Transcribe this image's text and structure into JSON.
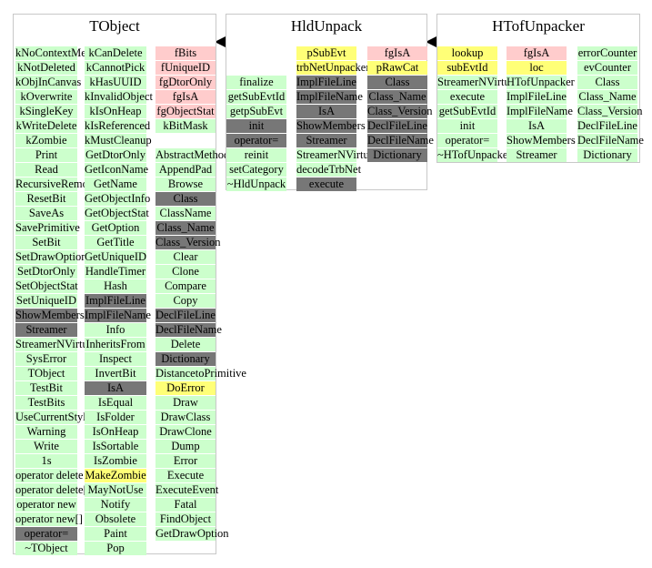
{
  "classes": [
    {
      "title": "TObject",
      "columns": [
        [
          {
            "text": "kNoContextMenu",
            "color": "green"
          },
          {
            "text": "kNotDeleted",
            "color": "green"
          },
          {
            "text": "kObjInCanvas",
            "color": "green"
          },
          {
            "text": "kOverwrite",
            "color": "green"
          },
          {
            "text": "kSingleKey",
            "color": "green"
          },
          {
            "text": "kWriteDelete",
            "color": "green"
          },
          {
            "text": "kZombie",
            "color": "green"
          },
          {
            "text": "Print",
            "color": "green"
          },
          {
            "text": "Read",
            "color": "green"
          },
          {
            "text": "RecursiveRemove",
            "color": "green"
          },
          {
            "text": "ResetBit",
            "color": "green"
          },
          {
            "text": "SaveAs",
            "color": "green"
          },
          {
            "text": "SavePrimitive",
            "color": "green"
          },
          {
            "text": "SetBit",
            "color": "green"
          },
          {
            "text": "SetDrawOption",
            "color": "green"
          },
          {
            "text": "SetDtorOnly",
            "color": "green"
          },
          {
            "text": "SetObjectStat",
            "color": "green"
          },
          {
            "text": "SetUniqueID",
            "color": "green"
          },
          {
            "text": "ShowMembers",
            "color": "gray"
          },
          {
            "text": "Streamer",
            "color": "gray"
          },
          {
            "text": "StreamerNVirtual",
            "color": "green"
          },
          {
            "text": "SysError",
            "color": "green"
          },
          {
            "text": "TObject",
            "color": "green"
          },
          {
            "text": "TestBit",
            "color": "green"
          },
          {
            "text": "TestBits",
            "color": "green"
          },
          {
            "text": "UseCurrentStyle",
            "color": "green"
          },
          {
            "text": "Warning",
            "color": "green"
          },
          {
            "text": "Write",
            "color": "green"
          },
          {
            "text": "1s",
            "color": "green"
          },
          {
            "text": "operator delete",
            "color": "green"
          },
          {
            "text": "operator delete[]",
            "color": "green"
          },
          {
            "text": "operator new",
            "color": "green"
          },
          {
            "text": "operator new[]",
            "color": "green"
          },
          {
            "text": "operator=",
            "color": "gray"
          },
          {
            "text": "~TObject",
            "color": "green"
          }
        ],
        [
          {
            "text": "kCanDelete",
            "color": "green"
          },
          {
            "text": "kCannotPick",
            "color": "green"
          },
          {
            "text": "kHasUUID",
            "color": "green"
          },
          {
            "text": "kInvalidObject",
            "color": "green"
          },
          {
            "text": "kIsOnHeap",
            "color": "green"
          },
          {
            "text": "kIsReferenced",
            "color": "green"
          },
          {
            "text": "kMustCleanup",
            "color": "green"
          },
          {
            "text": "GetDtorOnly",
            "color": "green"
          },
          {
            "text": "GetIconName",
            "color": "green"
          },
          {
            "text": "GetName",
            "color": "green"
          },
          {
            "text": "GetObjectInfo",
            "color": "green"
          },
          {
            "text": "GetObjectStat",
            "color": "green"
          },
          {
            "text": "GetOption",
            "color": "green"
          },
          {
            "text": "GetTitle",
            "color": "green"
          },
          {
            "text": "GetUniqueID",
            "color": "green"
          },
          {
            "text": "HandleTimer",
            "color": "green"
          },
          {
            "text": "Hash",
            "color": "green"
          },
          {
            "text": "ImplFileLine",
            "color": "gray"
          },
          {
            "text": "ImplFileName",
            "color": "gray"
          },
          {
            "text": "Info",
            "color": "green"
          },
          {
            "text": "InheritsFrom",
            "color": "green"
          },
          {
            "text": "Inspect",
            "color": "green"
          },
          {
            "text": "InvertBit",
            "color": "green"
          },
          {
            "text": "IsA",
            "color": "gray"
          },
          {
            "text": "IsEqual",
            "color": "green"
          },
          {
            "text": "IsFolder",
            "color": "green"
          },
          {
            "text": "IsOnHeap",
            "color": "green"
          },
          {
            "text": "IsSortable",
            "color": "green"
          },
          {
            "text": "IsZombie",
            "color": "green"
          },
          {
            "text": "MakeZombie",
            "color": "yellow"
          },
          {
            "text": "MayNotUse",
            "color": "green"
          },
          {
            "text": "Notify",
            "color": "green"
          },
          {
            "text": "Obsolete",
            "color": "green"
          },
          {
            "text": "Paint",
            "color": "green"
          },
          {
            "text": "Pop",
            "color": "green"
          }
        ],
        [
          {
            "text": "fBits",
            "color": "pink"
          },
          {
            "text": "fUniqueID",
            "color": "pink"
          },
          {
            "text": "fgDtorOnly",
            "color": "pink"
          },
          {
            "text": "fgIsA",
            "color": "pink"
          },
          {
            "text": "fgObjectStat",
            "color": "pink"
          },
          {
            "text": "kBitMask",
            "color": "green"
          },
          {
            "text": "",
            "color": "blank"
          },
          {
            "text": "AbstractMethod",
            "color": "green"
          },
          {
            "text": "AppendPad",
            "color": "green"
          },
          {
            "text": "Browse",
            "color": "green"
          },
          {
            "text": "Class",
            "color": "gray"
          },
          {
            "text": "ClassName",
            "color": "green"
          },
          {
            "text": "Class_Name",
            "color": "gray"
          },
          {
            "text": "Class_Version",
            "color": "gray"
          },
          {
            "text": "Clear",
            "color": "green"
          },
          {
            "text": "Clone",
            "color": "green"
          },
          {
            "text": "Compare",
            "color": "green"
          },
          {
            "text": "Copy",
            "color": "green"
          },
          {
            "text": "DeclFileLine",
            "color": "gray"
          },
          {
            "text": "DeclFileName",
            "color": "gray"
          },
          {
            "text": "Delete",
            "color": "green"
          },
          {
            "text": "Dictionary",
            "color": "gray"
          },
          {
            "text": "DistancetoPrimitive",
            "color": "green"
          },
          {
            "text": "DoError",
            "color": "yellow"
          },
          {
            "text": "Draw",
            "color": "green"
          },
          {
            "text": "DrawClass",
            "color": "green"
          },
          {
            "text": "DrawClone",
            "color": "green"
          },
          {
            "text": "Dump",
            "color": "green"
          },
          {
            "text": "Error",
            "color": "green"
          },
          {
            "text": "Execute",
            "color": "green"
          },
          {
            "text": "ExecuteEvent",
            "color": "green"
          },
          {
            "text": "Fatal",
            "color": "green"
          },
          {
            "text": "FindObject",
            "color": "green"
          },
          {
            "text": "GetDrawOption",
            "color": "green"
          }
        ]
      ]
    },
    {
      "title": "HldUnpack",
      "columns": [
        [
          {
            "text": "",
            "color": "blank"
          },
          {
            "text": "",
            "color": "blank"
          },
          {
            "text": "finalize",
            "color": "green"
          },
          {
            "text": "getSubEvtId",
            "color": "green"
          },
          {
            "text": "getpSubEvt",
            "color": "green"
          },
          {
            "text": "init",
            "color": "gray"
          },
          {
            "text": "operator=",
            "color": "gray"
          },
          {
            "text": "reinit",
            "color": "green"
          },
          {
            "text": "setCategory",
            "color": "green"
          },
          {
            "text": "~HldUnpack",
            "color": "green"
          }
        ],
        [
          {
            "text": "pSubEvt",
            "color": "yellow"
          },
          {
            "text": "trbNetUnpacker",
            "color": "yellow"
          },
          {
            "text": "ImplFileLine",
            "color": "gray"
          },
          {
            "text": "ImplFileName",
            "color": "gray"
          },
          {
            "text": "IsA",
            "color": "gray"
          },
          {
            "text": "ShowMembers",
            "color": "gray"
          },
          {
            "text": "Streamer",
            "color": "gray"
          },
          {
            "text": "StreamerNVirtual",
            "color": "green"
          },
          {
            "text": "decodeTrbNet",
            "color": "green"
          },
          {
            "text": "execute",
            "color": "gray"
          }
        ],
        [
          {
            "text": "fgIsA",
            "color": "pink"
          },
          {
            "text": "pRawCat",
            "color": "yellow"
          },
          {
            "text": "Class",
            "color": "gray"
          },
          {
            "text": "Class_Name",
            "color": "gray"
          },
          {
            "text": "Class_Version",
            "color": "gray"
          },
          {
            "text": "DeclFileLine",
            "color": "gray"
          },
          {
            "text": "DeclFileName",
            "color": "gray"
          },
          {
            "text": "Dictionary",
            "color": "gray"
          }
        ]
      ]
    },
    {
      "title": "HTofUnpacker",
      "columns": [
        [
          {
            "text": "lookup",
            "color": "yellow"
          },
          {
            "text": "subEvtId",
            "color": "yellow"
          },
          {
            "text": "StreamerNVirtual",
            "color": "green"
          },
          {
            "text": "execute",
            "color": "green"
          },
          {
            "text": "getSubEvtId",
            "color": "green"
          },
          {
            "text": "init",
            "color": "green"
          },
          {
            "text": "operator=",
            "color": "green"
          },
          {
            "text": "~HTofUnpacker",
            "color": "green"
          }
        ],
        [
          {
            "text": "fgIsA",
            "color": "pink"
          },
          {
            "text": "loc",
            "color": "yellow"
          },
          {
            "text": "HTofUnpacker",
            "color": "green"
          },
          {
            "text": "ImplFileLine",
            "color": "green"
          },
          {
            "text": "ImplFileName",
            "color": "green"
          },
          {
            "text": "IsA",
            "color": "green"
          },
          {
            "text": "ShowMembers",
            "color": "green"
          },
          {
            "text": "Streamer",
            "color": "green"
          }
        ],
        [
          {
            "text": "errorCounter",
            "color": "green"
          },
          {
            "text": "evCounter",
            "color": "green"
          },
          {
            "text": "Class",
            "color": "green"
          },
          {
            "text": "Class_Name",
            "color": "green"
          },
          {
            "text": "Class_Version",
            "color": "green"
          },
          {
            "text": "DeclFileLine",
            "color": "green"
          },
          {
            "text": "DeclFileName",
            "color": "green"
          },
          {
            "text": "Dictionary",
            "color": "green"
          }
        ]
      ]
    }
  ],
  "colors": {
    "green": "#ccffcc",
    "gray": "#777777",
    "pink": "#ffcccc",
    "yellow": "#ffff77",
    "border": "#c8c8c8",
    "arrow": "#000000"
  }
}
